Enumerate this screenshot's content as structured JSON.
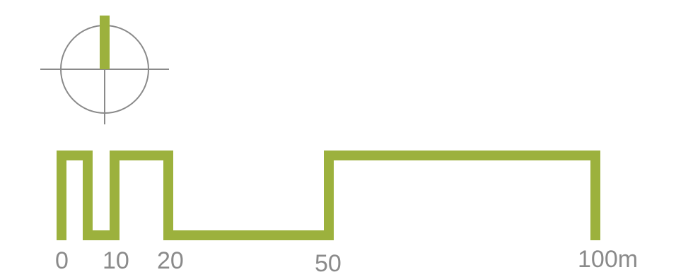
{
  "north_arrow": {
    "icon": "north-arrow-icon",
    "circle_color": "#8a8a8a",
    "needle_color": "#9cb13d"
  },
  "scale_bar": {
    "color": "#9cb13d",
    "ticks": [
      {
        "value": 0,
        "label": "0"
      },
      {
        "value": 10,
        "label": "10"
      },
      {
        "value": 20,
        "label": "20"
      },
      {
        "value": 50,
        "label": "50"
      },
      {
        "value": 100,
        "label": "100m"
      }
    ]
  }
}
